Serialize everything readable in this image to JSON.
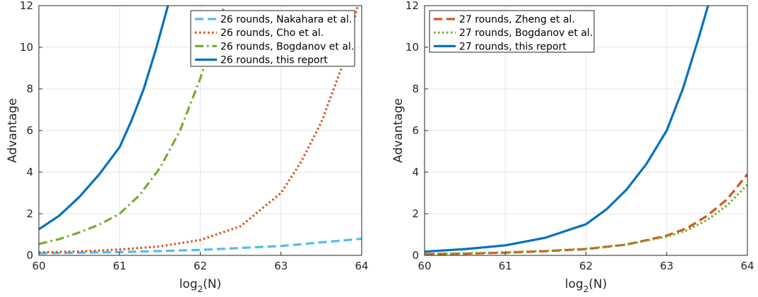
{
  "chart_data": [
    {
      "type": "line",
      "x_axis_label": "log",
      "x_axis_label_sub": "2",
      "x_axis_label_tail": "(N)",
      "ylabel": "Advantage",
      "xlim": [
        60,
        64
      ],
      "ylim": [
        0,
        12
      ],
      "xticks": [
        60,
        61,
        62,
        63,
        64
      ],
      "yticks": [
        0,
        2,
        4,
        6,
        8,
        10,
        12
      ],
      "grid": true,
      "legend_position": "top-right",
      "series": [
        {
          "name": "26 rounds, Nakahara et al.",
          "color": "#4DBEEE",
          "dash": "dashed",
          "x": [
            60,
            61,
            62,
            63,
            64
          ],
          "y": [
            0.1,
            0.16,
            0.26,
            0.45,
            0.8
          ]
        },
        {
          "name": "26 rounds, Cho et al.",
          "color": "#D95319",
          "dash": "dotted",
          "x": [
            60,
            60.5,
            61,
            61.5,
            62,
            62.5,
            63,
            63.25,
            63.5,
            63.75,
            64
          ],
          "y": [
            0.15,
            0.19,
            0.28,
            0.43,
            0.74,
            1.4,
            3.0,
            4.5,
            6.4,
            9.0,
            12.7
          ]
        },
        {
          "name": "26 rounds, Bogdanov et al.",
          "color": "#77AC30",
          "dash": "dashdot",
          "x": [
            60,
            60.25,
            60.5,
            60.75,
            61,
            61.25,
            61.5,
            61.75,
            62,
            62.15,
            62.3,
            62.4
          ],
          "y": [
            0.55,
            0.78,
            1.1,
            1.48,
            2.0,
            2.9,
            4.2,
            6.0,
            8.5,
            10.3,
            12.0,
            13.2
          ]
        },
        {
          "name": "26 rounds, this report",
          "color": "#0072BD",
          "dash": "solid",
          "x": [
            60,
            60.25,
            60.5,
            60.75,
            61,
            61.15,
            61.3,
            61.45,
            61.6,
            61.7
          ],
          "y": [
            1.25,
            1.9,
            2.8,
            3.9,
            5.2,
            6.5,
            8.0,
            9.9,
            12.0,
            13.5
          ]
        }
      ]
    },
    {
      "type": "line",
      "x_axis_label": "log",
      "x_axis_label_sub": "2",
      "x_axis_label_tail": "(N)",
      "ylabel": "Advantage",
      "xlim": [
        60,
        64
      ],
      "ylim": [
        0,
        12
      ],
      "xticks": [
        60,
        61,
        62,
        63,
        64
      ],
      "yticks": [
        0,
        2,
        4,
        6,
        8,
        10,
        12
      ],
      "grid": true,
      "legend_position": "top-left",
      "series": [
        {
          "name": "27 rounds, Zheng et al.",
          "color": "#D95319",
          "dash": "dashed",
          "x": [
            60,
            60.5,
            61,
            61.5,
            62,
            62.5,
            63,
            63.25,
            63.5,
            63.75,
            64
          ],
          "y": [
            0.06,
            0.08,
            0.13,
            0.2,
            0.3,
            0.52,
            0.95,
            1.3,
            1.9,
            2.7,
            3.9
          ]
        },
        {
          "name": "27 rounds, Bogdanov et al.",
          "color": "#77AC30",
          "dash": "dotted",
          "x": [
            60,
            60.5,
            61,
            61.5,
            62,
            62.5,
            63,
            63.25,
            63.5,
            63.75,
            64
          ],
          "y": [
            0.07,
            0.1,
            0.15,
            0.22,
            0.32,
            0.52,
            0.9,
            1.2,
            1.7,
            2.4,
            3.4
          ]
        },
        {
          "name": "27 rounds, this report",
          "color": "#0072BD",
          "dash": "solid",
          "x": [
            60,
            60.5,
            61,
            61.5,
            62,
            62.25,
            62.5,
            62.75,
            63,
            63.2,
            63.4,
            63.55
          ],
          "y": [
            0.18,
            0.3,
            0.48,
            0.85,
            1.5,
            2.2,
            3.15,
            4.4,
            6.0,
            8.0,
            10.5,
            12.5
          ]
        }
      ]
    }
  ]
}
